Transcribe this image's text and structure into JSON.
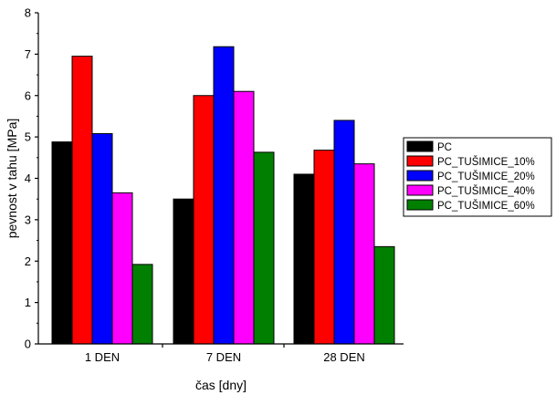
{
  "chart_data": {
    "type": "bar",
    "xlabel": "čas [dny]",
    "ylabel": "pevnost v tahu [MPa]",
    "ylim": [
      0,
      8
    ],
    "yticks": [
      0,
      1,
      2,
      3,
      4,
      5,
      6,
      7,
      8
    ],
    "grid": false,
    "legend_position": "right",
    "categories": [
      "1 DEN",
      "7 DEN",
      "28 DEN"
    ],
    "series": [
      {
        "name": "PC",
        "color": "#000000",
        "values": [
          4.88,
          3.5,
          4.1
        ]
      },
      {
        "name": "PC_TUŠIMICE_10%",
        "color": "#ff0000",
        "values": [
          6.95,
          6.0,
          4.68
        ]
      },
      {
        "name": "PC_TUŠIMICE_20%",
        "color": "#0000ff",
        "values": [
          5.08,
          7.18,
          5.4
        ]
      },
      {
        "name": "PC_TUŠIMICE_40%",
        "color": "#ff00ff",
        "values": [
          3.65,
          6.1,
          4.35
        ]
      },
      {
        "name": "PC_TUŠIMICE_60%",
        "color": "#007f00",
        "values": [
          1.92,
          4.63,
          2.35
        ]
      }
    ]
  }
}
